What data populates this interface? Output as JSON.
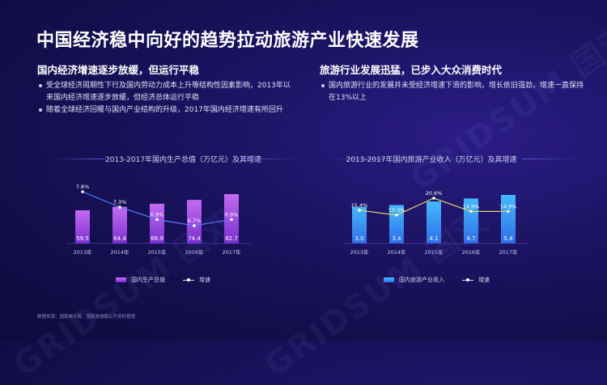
{
  "title": "中国经济稳中向好的趋势拉动旅游产业快速发展",
  "left": {
    "subtitle": "国内经济增速逐步放缓，但运行平稳",
    "bullets": [
      "受全球经济周期性下行及国内劳动力成本上升等结构性因素影响，2013年以来国内经济增速逐步放缓，但经济总体运行平稳",
      "随着全球经济回暖与国内产业结构的升级，2017年国内经济增速有所回升"
    ]
  },
  "right": {
    "subtitle": "旅游行业发展迅猛，已步入大众消费时代",
    "bullets": [
      "国内旅游行业的发展并未受经济增速下滑的影响，增长依旧强劲，增速一直保持在13%以上"
    ]
  },
  "chart_data": [
    {
      "type": "bar",
      "title": "2013-2017年国内生产总值（万亿元）及其增速",
      "categories": [
        "2013年",
        "2014年",
        "2015年",
        "2016年",
        "2017年"
      ],
      "series": [
        {
          "name": "国内生产总值",
          "type": "bar",
          "values": [
            59.5,
            64.4,
            68.9,
            74.4,
            82.7
          ],
          "labels": [
            "59.5",
            "64.4",
            "68.9",
            "74.4",
            "82.7"
          ]
        },
        {
          "name": "增速",
          "type": "line",
          "values": [
            7.8,
            7.3,
            6.9,
            6.7,
            6.9
          ],
          "labels": [
            "7.8%",
            "7.3%",
            "6.9%",
            "6.7%",
            "6.9%"
          ]
        }
      ],
      "colors": {
        "bar_top": "#c36cf0",
        "bar_bottom": "#7a2fd0",
        "line": "#4f7bff",
        "marker": "#ffffff"
      },
      "legend_placement": "bottom",
      "grid": false
    },
    {
      "type": "bar",
      "title": "2013-2017年国内旅游产业收入（万亿元）及其增速",
      "categories": [
        "2013年",
        "2014年",
        "2015年",
        "2016年",
        "2017年"
      ],
      "series": [
        {
          "name": "国内旅游产业收入",
          "type": "bar",
          "values": [
            3.0,
            3.4,
            4.1,
            4.7,
            5.4
          ],
          "labels": [
            "3.0",
            "3.4",
            "4.1",
            "4.7",
            "5.4"
          ]
        },
        {
          "name": "增速",
          "type": "line",
          "values": [
            15.4,
            13.3,
            20.6,
            14.9,
            14.9
          ],
          "labels": [
            "15.4%",
            "13.3%",
            "20.6%",
            "14.9%",
            "14.9%"
          ]
        }
      ],
      "colors": {
        "bar_top": "#46b8ff",
        "bar_bottom": "#2f6fe8",
        "line": "#d8d86a",
        "marker": "#ffffff"
      },
      "legend_placement": "bottom",
      "grid": false
    }
  ],
  "source": "数据来源：国家统计局、国家旅游局公开资料整理",
  "watermark": "GRIDSUM 国双"
}
